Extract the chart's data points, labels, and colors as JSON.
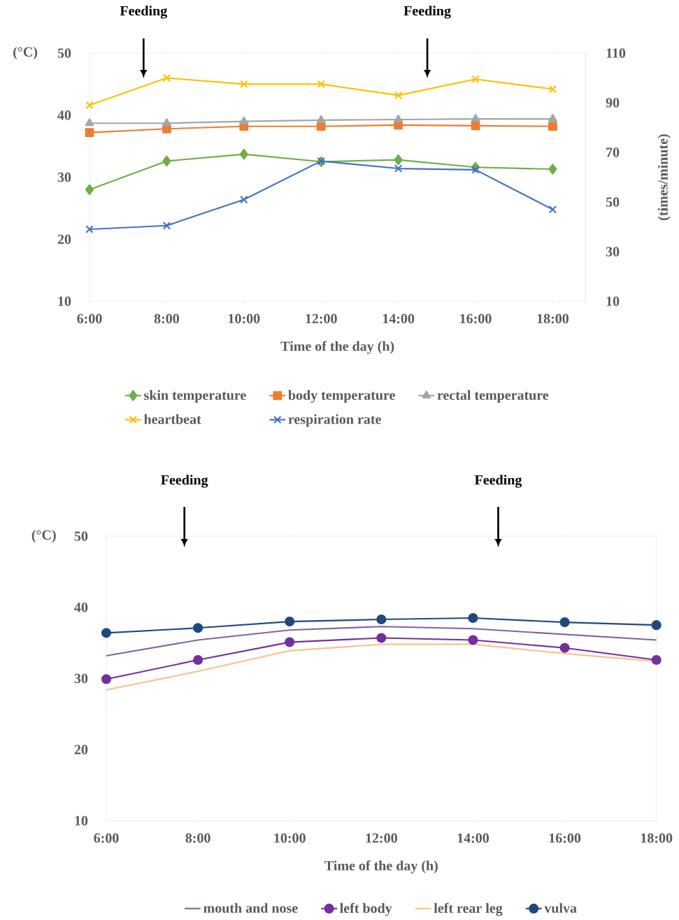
{
  "chart_data": [
    {
      "type": "line",
      "x": [
        6,
        8,
        10,
        12,
        14,
        16,
        18
      ],
      "xlim": [
        6,
        18.85
      ],
      "xticks": [
        {
          "value": 6,
          "label": "6:00"
        },
        {
          "value": 8,
          "label": "8:00"
        },
        {
          "value": 10,
          "label": "10:00"
        },
        {
          "value": 12,
          "label": "12:00"
        },
        {
          "value": 14,
          "label": "14:00"
        },
        {
          "value": 16,
          "label": "16:00"
        },
        {
          "value": 18,
          "label": "18:00"
        }
      ],
      "ylim": [
        10,
        50
      ],
      "yticks": [
        10,
        20,
        30,
        40,
        50
      ],
      "y2lim": [
        10,
        110
      ],
      "y2ticks": [
        10,
        30,
        50,
        70,
        90,
        110
      ],
      "xlabel": "Time of the day (h)",
      "ylabel": "(°C)",
      "y2label": "(times/minute)",
      "legend": "bottom",
      "annotations": [
        "Feeding",
        "Feeding"
      ],
      "series": [
        {
          "name": "skin temperature",
          "color": "#70ad47",
          "marker": "diamond",
          "values": [
            28.0,
            32.6,
            33.7,
            32.5,
            32.8,
            31.6,
            31.3
          ]
        },
        {
          "name": "body temperature",
          "color": "#ed7d31",
          "marker": "square",
          "values": [
            37.2,
            37.8,
            38.2,
            38.2,
            38.4,
            38.3,
            38.2
          ]
        },
        {
          "name": "rectal temperature",
          "color": "#a5a5a5",
          "marker": "triangle",
          "values": [
            38.7,
            38.7,
            39.0,
            39.2,
            39.3,
            39.4,
            39.4
          ]
        },
        {
          "name": "heartbeat",
          "color": "#ffc000",
          "marker": "cross",
          "axis": "y2",
          "values": [
            89,
            100,
            97.5,
            97.5,
            93,
            99.5,
            95.5
          ]
        },
        {
          "name": "respiration rate",
          "color": "#4472c4",
          "marker": "cross",
          "axis": "y2",
          "values": [
            39,
            40.5,
            51,
            66.5,
            63.5,
            63,
            47
          ]
        }
      ]
    },
    {
      "type": "line",
      "x": [
        6,
        8,
        10,
        12,
        14,
        16,
        18
      ],
      "xlim": [
        6,
        18
      ],
      "xticks": [
        {
          "value": 6,
          "label": "6:00"
        },
        {
          "value": 8,
          "label": "8:00"
        },
        {
          "value": 10,
          "label": "10:00"
        },
        {
          "value": 12,
          "label": "12:00"
        },
        {
          "value": 14,
          "label": "14:00"
        },
        {
          "value": 16,
          "label": "16:00"
        },
        {
          "value": 18,
          "label": "18:00"
        }
      ],
      "ylim": [
        10,
        50
      ],
      "yticks": [
        10,
        20,
        30,
        40,
        50
      ],
      "xlabel": "Time of the day (h)",
      "ylabel": "(°C)",
      "legend": "bottom",
      "annotations": [
        "Feeding",
        "Feeding"
      ],
      "series": [
        {
          "name": "mouth and nose",
          "color": "#8064a2",
          "marker": "none",
          "values": [
            33.2,
            35.4,
            36.8,
            37.3,
            37.0,
            36.2,
            35.4
          ]
        },
        {
          "name": "left body",
          "color": "#7030a0",
          "marker": "circle",
          "values": [
            29.9,
            32.6,
            35.1,
            35.7,
            35.4,
            34.3,
            32.6
          ]
        },
        {
          "name": "left rear leg",
          "color": "#fac090",
          "marker": "none",
          "values": [
            28.4,
            31.0,
            33.9,
            34.8,
            34.8,
            33.5,
            32.4
          ]
        },
        {
          "name": "vulva",
          "color": "#1f497d",
          "marker": "circle",
          "values": [
            36.4,
            37.1,
            38.0,
            38.3,
            38.5,
            37.9,
            37.5
          ]
        }
      ]
    }
  ]
}
